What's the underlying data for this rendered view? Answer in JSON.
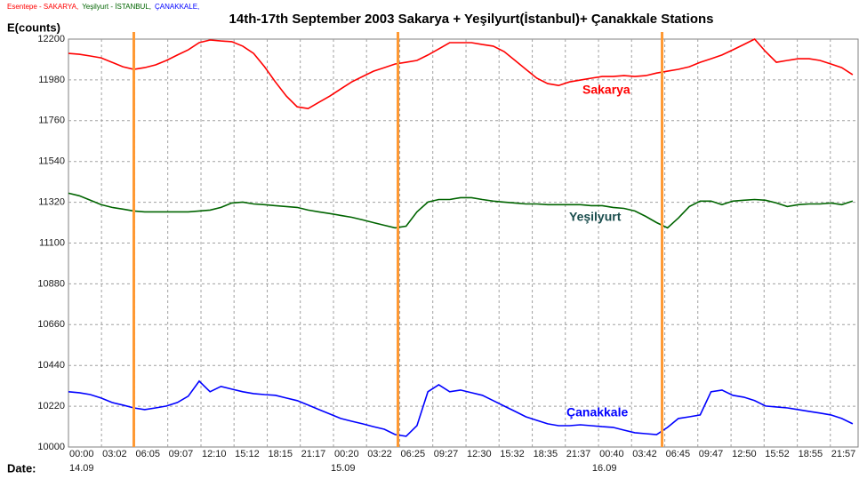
{
  "chart_data": {
    "type": "line",
    "title": "14th-17th September 2003 Sakarya + Yeşilyurt(İstanbul)+ Çanakkale Stations",
    "header_parts": [
      "Esentepe - SAKARYA,",
      "Yeşilyurt - İSTANBUL,",
      "ÇANAKKALE,"
    ],
    "ylabel": "E(counts)",
    "xlabel": "Date:",
    "x": [
      0,
      1,
      2,
      3,
      4,
      5,
      6,
      7,
      8,
      9,
      10,
      11,
      12,
      13,
      14,
      15,
      16,
      17,
      18,
      19,
      20,
      21,
      22,
      23,
      24,
      25,
      26,
      27,
      28,
      29,
      30,
      31,
      32,
      33,
      34,
      35,
      36,
      37,
      38,
      39,
      40,
      41,
      42,
      43,
      44,
      45,
      46,
      47,
      48,
      49,
      50,
      51,
      52,
      53,
      54,
      55,
      56,
      57,
      58,
      59,
      60,
      61,
      62,
      63,
      64,
      65,
      66,
      67,
      68,
      69,
      70,
      71,
      72
    ],
    "series": [
      {
        "name": "Sakarya",
        "color": "#ff0000",
        "values": [
          12123,
          12118,
          12109,
          12099,
          12075,
          12051,
          12037,
          12046,
          12061,
          12085,
          12114,
          12142,
          12181,
          12195,
          12190,
          12186,
          12162,
          12123,
          12051,
          11969,
          11893,
          11835,
          11825,
          11859,
          11893,
          11931,
          11969,
          11998,
          12027,
          12046,
          12066,
          12075,
          12085,
          12114,
          12147,
          12181,
          12181,
          12181,
          12171,
          12162,
          12133,
          12085,
          12037,
          11989,
          11960,
          11950,
          11969,
          11979,
          11989,
          11998,
          11998,
          12003,
          11998,
          12003,
          12017,
          12027,
          12037,
          12051,
          12075,
          12094,
          12114,
          12142,
          12171,
          12200,
          12133,
          12075,
          12085,
          12094,
          12094,
          12085,
          12066,
          12046,
          12008
        ]
      },
      {
        "name": "Yeşilyurt",
        "color": "#006400",
        "values": [
          11369,
          11355,
          11331,
          11307,
          11292,
          11283,
          11273,
          11268,
          11268,
          11268,
          11268,
          11268,
          11273,
          11278,
          11292,
          11316,
          11321,
          11311,
          11307,
          11302,
          11297,
          11292,
          11278,
          11268,
          11259,
          11249,
          11239,
          11225,
          11210,
          11196,
          11182,
          11191,
          11268,
          11321,
          11335,
          11335,
          11345,
          11345,
          11335,
          11326,
          11321,
          11316,
          11311,
          11311,
          11307,
          11307,
          11307,
          11307,
          11302,
          11302,
          11292,
          11287,
          11273,
          11244,
          11210,
          11182,
          11235,
          11297,
          11326,
          11326,
          11307,
          11326,
          11331,
          11335,
          11331,
          11316,
          11297,
          11307,
          11311,
          11311,
          11316,
          11307,
          11326
        ]
      },
      {
        "name": "Çanakkale",
        "color": "#0000ff",
        "values": [
          10298,
          10293,
          10283,
          10264,
          10240,
          10226,
          10211,
          10202,
          10211,
          10221,
          10240,
          10274,
          10355,
          10298,
          10327,
          10312,
          10298,
          10288,
          10283,
          10279,
          10264,
          10250,
          10226,
          10202,
          10178,
          10154,
          10139,
          10125,
          10110,
          10096,
          10067,
          10058,
          10115,
          10298,
          10336,
          10298,
          10307,
          10293,
          10279,
          10250,
          10221,
          10192,
          10163,
          10144,
          10125,
          10115,
          10115,
          10120,
          10115,
          10110,
          10106,
          10091,
          10077,
          10072,
          10067,
          10106,
          10154,
          10163,
          10173,
          10298,
          10307,
          10279,
          10269,
          10250,
          10221,
          10216,
          10211,
          10202,
          10192,
          10183,
          10173,
          10154,
          10125
        ]
      }
    ],
    "vlines": [
      6,
      30.25,
      54.5
    ],
    "vline_color": "#ff9933",
    "xlim": [
      0,
      72.5
    ],
    "xticks": [
      {
        "value": 0,
        "label": "00:00"
      },
      {
        "value": 3.033,
        "label": "03:02"
      },
      {
        "value": 6.083,
        "label": "06:05"
      },
      {
        "value": 9.117,
        "label": "09:07"
      },
      {
        "value": 12.167,
        "label": "12:10"
      },
      {
        "value": 15.2,
        "label": "15:12"
      },
      {
        "value": 18.25,
        "label": "18:15"
      },
      {
        "value": 21.283,
        "label": "21:17"
      },
      {
        "value": 24.333,
        "label": "00:20"
      },
      {
        "value": 27.367,
        "label": "03:22"
      },
      {
        "value": 30.417,
        "label": "06:25"
      },
      {
        "value": 33.45,
        "label": "09:27"
      },
      {
        "value": 36.5,
        "label": "12:30"
      },
      {
        "value": 39.533,
        "label": "15:32"
      },
      {
        "value": 42.583,
        "label": "18:35"
      },
      {
        "value": 45.617,
        "label": "21:37"
      },
      {
        "value": 48.667,
        "label": "00:40"
      },
      {
        "value": 51.7,
        "label": "03:42"
      },
      {
        "value": 54.75,
        "label": "06:45"
      },
      {
        "value": 57.783,
        "label": "09:47"
      },
      {
        "value": 60.833,
        "label": "12:50"
      },
      {
        "value": 63.867,
        "label": "15:52"
      },
      {
        "value": 66.917,
        "label": "18:55"
      },
      {
        "value": 69.95,
        "label": "21:57"
      }
    ],
    "date_ticks": [
      {
        "value": 0,
        "label": "14.09"
      },
      {
        "value": 24,
        "label": "15.09"
      },
      {
        "value": 48,
        "label": "16.09"
      }
    ],
    "ylim": [
      10000,
      12200
    ],
    "yticks": [
      10000,
      10220,
      10440,
      10660,
      10880,
      11100,
      11320,
      11540,
      11760,
      11980,
      12200
    ],
    "grid": true
  }
}
